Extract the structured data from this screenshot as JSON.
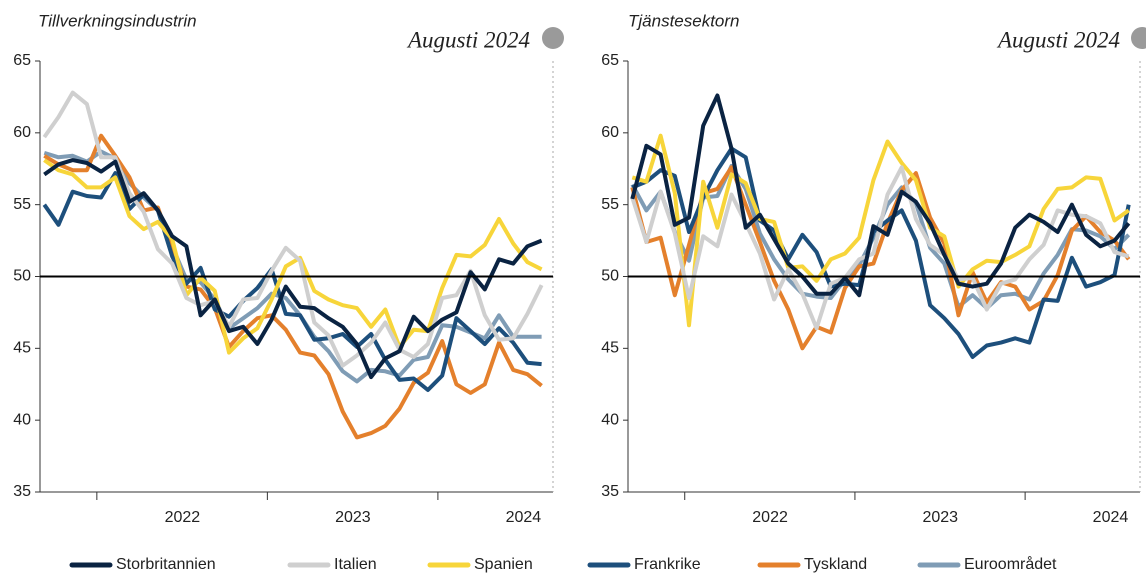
{
  "chart_data": [
    {
      "type": "line",
      "title": "Tillverkningsindustrin",
      "annotation": "Augusti 2024",
      "categories": [
        null,
        null,
        null,
        null,
        null,
        null,
        null,
        null,
        null,
        null,
        "2022",
        null,
        null,
        null,
        null,
        null,
        null,
        null,
        null,
        null,
        null,
        null,
        "2023",
        null,
        null,
        null,
        null,
        null,
        null,
        null,
        null,
        null,
        null,
        null,
        "2024",
        null
      ],
      "ylim": [
        35,
        65
      ],
      "yticks": [
        35,
        40,
        45,
        50,
        55,
        60,
        65
      ],
      "reference_line": 50,
      "series": [
        {
          "name": "Euroområdet",
          "color": "#7f9cb5",
          "values": [
            58.6,
            58.3,
            58.4,
            58.0,
            58.7,
            58.2,
            56.5,
            55.5,
            54.6,
            52.1,
            49.8,
            49.6,
            48.4,
            46.4,
            47.1,
            47.8,
            48.8,
            48.5,
            47.3,
            45.8,
            44.8,
            43.4,
            42.7,
            43.5,
            43.4,
            43.1,
            44.2,
            44.4,
            46.6,
            46.5,
            46.1,
            45.7,
            47.3,
            45.8,
            45.8,
            45.8
          ]
        },
        {
          "name": "Tyskland",
          "color": "#e4802c",
          "values": [
            58.4,
            57.8,
            57.4,
            57.4,
            59.8,
            58.4,
            56.9,
            54.6,
            54.8,
            52.0,
            49.3,
            49.1,
            47.8,
            45.1,
            46.2,
            47.1,
            47.3,
            46.3,
            44.7,
            44.5,
            43.2,
            40.6,
            38.8,
            39.1,
            39.6,
            40.8,
            42.6,
            43.3,
            45.5,
            42.5,
            41.9,
            42.5,
            45.4,
            43.5,
            43.2,
            42.4
          ]
        },
        {
          "name": "Frankrike",
          "color": "#1d4f7c",
          "values": [
            55.0,
            53.6,
            55.9,
            55.6,
            55.5,
            57.2,
            54.7,
            55.7,
            54.6,
            51.4,
            49.5,
            50.6,
            47.7,
            47.2,
            48.3,
            49.2,
            50.5,
            47.4,
            47.3,
            45.6,
            45.7,
            46.0,
            45.1,
            46.0,
            44.2,
            42.8,
            42.9,
            42.1,
            43.1,
            47.1,
            46.2,
            45.3,
            46.4,
            45.4,
            44.0,
            43.9
          ]
        },
        {
          "name": "Spanien",
          "color": "#f7d53a",
          "values": [
            58.1,
            57.4,
            57.1,
            56.2,
            56.2,
            56.9,
            54.2,
            53.3,
            53.8,
            52.6,
            48.7,
            49.9,
            49.0,
            44.7,
            45.7,
            46.4,
            48.4,
            50.7,
            51.3,
            49.0,
            48.4,
            48.0,
            47.8,
            46.5,
            47.7,
            45.1,
            46.3,
            46.2,
            49.2,
            51.5,
            51.4,
            52.2,
            54.0,
            52.3,
            51.0,
            50.5
          ]
        },
        {
          "name": "Italien",
          "color": "#cfcfcf",
          "values": [
            59.7,
            61.1,
            62.8,
            62.0,
            58.3,
            58.3,
            55.8,
            54.5,
            51.9,
            50.9,
            48.5,
            48.0,
            48.3,
            46.5,
            48.4,
            48.5,
            50.4,
            52.0,
            51.1,
            46.8,
            45.9,
            43.8,
            44.5,
            45.4,
            46.8,
            44.9,
            44.4,
            45.3,
            48.5,
            48.7,
            50.4,
            47.3,
            45.6,
            45.7,
            47.4,
            49.4
          ]
        },
        {
          "name": "Storbritannien",
          "color": "#0a2342",
          "values": [
            57.1,
            57.8,
            58.1,
            57.9,
            57.3,
            58.0,
            55.2,
            55.8,
            54.6,
            52.8,
            52.1,
            47.3,
            48.4,
            46.2,
            46.5,
            45.3,
            47.0,
            49.3,
            47.9,
            47.8,
            47.1,
            46.5,
            45.3,
            43.0,
            44.3,
            44.8,
            47.2,
            46.2,
            47.0,
            47.5,
            50.3,
            49.1,
            51.2,
            50.9,
            52.1,
            52.5
          ]
        }
      ]
    },
    {
      "type": "line",
      "title": "Tjänstesektorn",
      "annotation": "Augusti 2024",
      "categories": [
        null,
        null,
        null,
        null,
        null,
        null,
        null,
        null,
        null,
        null,
        "2022",
        null,
        null,
        null,
        null,
        null,
        null,
        null,
        null,
        null,
        null,
        null,
        "2023",
        null,
        null,
        null,
        null,
        null,
        null,
        null,
        null,
        null,
        null,
        null,
        "2024",
        null
      ],
      "ylim": [
        35,
        65
      ],
      "yticks": [
        35,
        40,
        45,
        50,
        55,
        60,
        65
      ],
      "reference_line": 50,
      "series": [
        {
          "name": "Euroområdet",
          "color": "#7f9cb5",
          "values": [
            56.4,
            54.6,
            55.9,
            53.1,
            51.1,
            55.5,
            55.6,
            57.7,
            56.1,
            53.0,
            51.2,
            49.8,
            48.8,
            48.6,
            48.5,
            49.8,
            50.8,
            52.7,
            55.0,
            56.2,
            55.1,
            52.0,
            50.9,
            47.9,
            48.7,
            47.8,
            48.7,
            48.8,
            48.4,
            50.2,
            51.5,
            53.3,
            53.2,
            52.8,
            51.9,
            52.9
          ]
        },
        {
          "name": "Tyskland",
          "color": "#e4802c",
          "values": [
            56.2,
            52.4,
            52.7,
            48.7,
            52.2,
            55.8,
            56.1,
            57.6,
            55.0,
            52.4,
            49.7,
            47.7,
            45.0,
            46.5,
            46.1,
            49.2,
            50.7,
            50.9,
            53.7,
            56.0,
            57.2,
            54.1,
            52.3,
            47.3,
            50.3,
            48.2,
            49.6,
            49.3,
            47.7,
            48.3,
            50.1,
            53.2,
            54.2,
            53.1,
            52.5,
            51.2
          ]
        },
        {
          "name": "Frankrike",
          "color": "#1d4f7c",
          "values": [
            56.2,
            56.6,
            57.4,
            57.0,
            53.1,
            55.5,
            57.4,
            58.9,
            58.3,
            53.9,
            53.2,
            51.2,
            52.9,
            51.7,
            49.3,
            49.5,
            49.4,
            53.1,
            53.9,
            54.6,
            52.5,
            48.0,
            47.1,
            46.0,
            44.4,
            45.2,
            45.4,
            45.7,
            45.4,
            48.4,
            48.3,
            51.3,
            49.3,
            49.6,
            50.1,
            55.0
          ]
        },
        {
          "name": "Spanien",
          "color": "#f7d53a",
          "values": [
            56.9,
            56.6,
            59.8,
            55.8,
            46.6,
            56.6,
            53.4,
            57.1,
            56.5,
            54.0,
            53.8,
            50.6,
            50.7,
            49.7,
            51.2,
            51.6,
            52.7,
            56.7,
            59.4,
            57.9,
            56.7,
            53.4,
            52.8,
            49.3,
            50.5,
            51.1,
            51.0,
            51.5,
            52.1,
            54.7,
            56.1,
            56.2,
            56.9,
            56.8,
            53.9,
            54.6
          ]
        },
        {
          "name": "Italien",
          "color": "#cfcfcf",
          "values": [
            55.5,
            52.4,
            55.9,
            53.0,
            48.5,
            52.8,
            52.1,
            55.7,
            53.7,
            51.6,
            48.4,
            50.5,
            48.8,
            46.4,
            49.5,
            49.9,
            51.2,
            51.6,
            55.7,
            57.6,
            54.0,
            52.2,
            51.5,
            49.8,
            49.9,
            47.7,
            49.5,
            49.8,
            51.2,
            52.2,
            54.6,
            54.3,
            54.2,
            53.7,
            51.7,
            51.4
          ]
        },
        {
          "name": "Storbritannien",
          "color": "#0a2342",
          "values": [
            55.4,
            59.1,
            58.5,
            53.6,
            54.1,
            60.5,
            62.6,
            58.9,
            53.4,
            54.3,
            52.6,
            50.9,
            50.0,
            48.8,
            48.8,
            49.9,
            48.7,
            53.5,
            52.9,
            55.9,
            55.2,
            53.7,
            51.5,
            49.5,
            49.3,
            49.5,
            50.9,
            53.4,
            54.3,
            53.8,
            53.1,
            55.0,
            52.9,
            52.1,
            52.5,
            53.7
          ]
        }
      ]
    }
  ]
}
